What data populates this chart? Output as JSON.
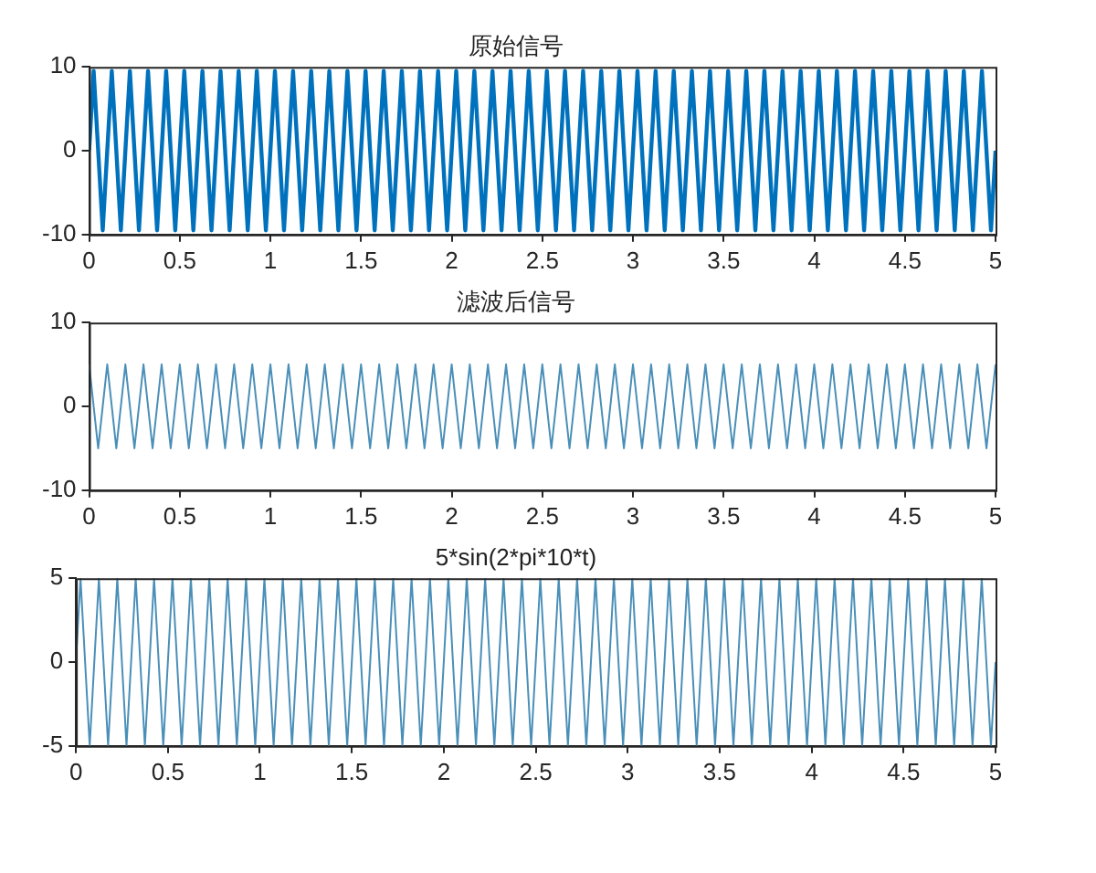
{
  "chart_data": [
    {
      "type": "line",
      "title": "原始信号",
      "xlim": [
        0,
        5
      ],
      "xticks": [
        0,
        0.5,
        1,
        1.5,
        2,
        2.5,
        3,
        3.5,
        4,
        4.5,
        5
      ],
      "ylim": [
        -10,
        10
      ],
      "yticks": [
        -10,
        0,
        10
      ],
      "grid": false,
      "legend": false,
      "marker": "none",
      "line_style": "solid",
      "series": [
        {
          "color": "#0072bd",
          "x": [
            0,
            0.025,
            0.075,
            0.125,
            0.175,
            0.225,
            0.275,
            0.325,
            0.375,
            0.425,
            0.475,
            0.525,
            0.575,
            0.625,
            0.675,
            0.725,
            0.775,
            0.825,
            0.875,
            0.925,
            0.975,
            1.025,
            1.075,
            1.125,
            1.175,
            1.225,
            1.275,
            1.325,
            1.375,
            1.425,
            1.475,
            1.525,
            1.575,
            1.625,
            1.675,
            1.725,
            1.775,
            1.825,
            1.875,
            1.925,
            1.975,
            2.025,
            2.075,
            2.125,
            2.175,
            2.225,
            2.275,
            2.325,
            2.375,
            2.425,
            2.475,
            2.525,
            2.575,
            2.625,
            2.675,
            2.725,
            2.775,
            2.825,
            2.875,
            2.925,
            2.975,
            3.025,
            3.075,
            3.125,
            3.175,
            3.225,
            3.275,
            3.325,
            3.375,
            3.425,
            3.475,
            3.525,
            3.575,
            3.625,
            3.675,
            3.725,
            3.775,
            3.825,
            3.875,
            3.925,
            3.975,
            4.025,
            4.075,
            4.125,
            4.175,
            4.225,
            4.275,
            4.325,
            4.375,
            4.425,
            4.475,
            4.525,
            4.575,
            4.625,
            4.675,
            4.725,
            4.775,
            4.825,
            4.875,
            4.925,
            4.975,
            5
          ],
          "values": [
            0,
            9.5,
            -9.5,
            9.5,
            -9.5,
            9.5,
            -9.5,
            9.5,
            -9.5,
            9.5,
            -9.5,
            9.5,
            -9.5,
            9.5,
            -9.5,
            9.5,
            -9.5,
            9.5,
            -9.5,
            9.5,
            -9.5,
            9.5,
            -9.5,
            9.5,
            -9.5,
            9.5,
            -9.5,
            9.5,
            -9.5,
            9.5,
            -9.5,
            9.5,
            -9.5,
            9.5,
            -9.5,
            9.5,
            -9.5,
            9.5,
            -9.5,
            9.5,
            -9.5,
            9.5,
            -9.5,
            9.5,
            -9.5,
            9.5,
            -9.5,
            9.5,
            -9.5,
            9.5,
            -9.5,
            9.5,
            -9.5,
            9.5,
            -9.5,
            9.5,
            -9.5,
            9.5,
            -9.5,
            9.5,
            -9.5,
            9.5,
            -9.5,
            9.5,
            -9.5,
            9.5,
            -9.5,
            9.5,
            -9.5,
            9.5,
            -9.5,
            9.5,
            -9.5,
            9.5,
            -9.5,
            9.5,
            -9.5,
            9.5,
            -9.5,
            9.5,
            -9.5,
            9.5,
            -9.5,
            9.5,
            -9.5,
            9.5,
            -9.5,
            9.5,
            -9.5,
            9.5,
            -9.5,
            9.5,
            -9.5,
            9.5,
            -9.5,
            9.5,
            -9.5,
            9.5,
            -9.5,
            9.5,
            -9.5,
            0
          ]
        }
      ]
    },
    {
      "type": "line",
      "title": "滤波后信号",
      "xlim": [
        0,
        5
      ],
      "xticks": [
        0,
        0.5,
        1,
        1.5,
        2,
        2.5,
        3,
        3.5,
        4,
        4.5,
        5
      ],
      "ylim": [
        -10,
        10
      ],
      "yticks": [
        -10,
        0,
        10
      ],
      "grid": false,
      "legend": false,
      "marker": "none",
      "line_style": "solid",
      "series": [
        {
          "color": "#4a8fb8",
          "x": [
            0,
            0.05,
            0.1,
            0.15,
            0.2,
            0.25,
            0.3,
            0.35,
            0.4,
            0.45,
            0.5,
            0.55,
            0.6,
            0.65,
            0.7,
            0.75,
            0.8,
            0.85,
            0.9,
            0.95,
            1,
            1.05,
            1.1,
            1.15,
            1.2,
            1.25,
            1.3,
            1.35,
            1.4,
            1.45,
            1.5,
            1.55,
            1.6,
            1.65,
            1.7,
            1.75,
            1.8,
            1.85,
            1.9,
            1.95,
            2,
            2.05,
            2.1,
            2.15,
            2.2,
            2.25,
            2.3,
            2.35,
            2.4,
            2.45,
            2.5,
            2.55,
            2.6,
            2.65,
            2.7,
            2.75,
            2.8,
            2.85,
            2.9,
            2.95,
            3,
            3.05,
            3.1,
            3.15,
            3.2,
            3.25,
            3.3,
            3.35,
            3.4,
            3.45,
            3.5,
            3.55,
            3.6,
            3.65,
            3.7,
            3.75,
            3.8,
            3.85,
            3.9,
            3.95,
            4,
            4.05,
            4.1,
            4.15,
            4.2,
            4.25,
            4.3,
            4.35,
            4.4,
            4.45,
            4.5,
            4.55,
            4.6,
            4.65,
            4.7,
            4.75,
            4.8,
            4.85,
            4.9,
            4.95,
            5
          ],
          "values": [
            5,
            -5,
            5,
            -5,
            5,
            -5,
            5,
            -5,
            5,
            -5,
            5,
            -5,
            5,
            -5,
            5,
            -5,
            5,
            -5,
            5,
            -5,
            5,
            -5,
            5,
            -5,
            5,
            -5,
            5,
            -5,
            5,
            -5,
            5,
            -5,
            5,
            -5,
            5,
            -5,
            5,
            -5,
            5,
            -5,
            5,
            -5,
            5,
            -5,
            5,
            -5,
            5,
            -5,
            5,
            -5,
            5,
            -5,
            5,
            -5,
            5,
            -5,
            5,
            -5,
            5,
            -5,
            5,
            -5,
            5,
            -5,
            5,
            -5,
            5,
            -5,
            5,
            -5,
            5,
            -5,
            5,
            -5,
            5,
            -5,
            5,
            -5,
            5,
            -5,
            5,
            -5,
            5,
            -5,
            5,
            -5,
            5,
            -5,
            5,
            -5,
            5,
            -5,
            5,
            -5,
            5,
            -5,
            5,
            -5,
            5,
            -5,
            5
          ]
        }
      ]
    },
    {
      "type": "line",
      "title": "5*sin(2*pi*10*t)",
      "xlim": [
        0,
        5
      ],
      "xticks": [
        0,
        0.5,
        1,
        1.5,
        2,
        2.5,
        3,
        3.5,
        4,
        4.5,
        5
      ],
      "ylim": [
        -5,
        5
      ],
      "yticks": [
        -5,
        0,
        5
      ],
      "grid": false,
      "legend": false,
      "marker": "none",
      "line_style": "solid",
      "series": [
        {
          "color": "#4a8fb8",
          "x": [
            0,
            0.025,
            0.075,
            0.125,
            0.175,
            0.225,
            0.275,
            0.325,
            0.375,
            0.425,
            0.475,
            0.525,
            0.575,
            0.625,
            0.675,
            0.725,
            0.775,
            0.825,
            0.875,
            0.925,
            0.975,
            1.025,
            1.075,
            1.125,
            1.175,
            1.225,
            1.275,
            1.325,
            1.375,
            1.425,
            1.475,
            1.525,
            1.575,
            1.625,
            1.675,
            1.725,
            1.775,
            1.825,
            1.875,
            1.925,
            1.975,
            2.025,
            2.075,
            2.125,
            2.175,
            2.225,
            2.275,
            2.325,
            2.375,
            2.425,
            2.475,
            2.525,
            2.575,
            2.625,
            2.675,
            2.725,
            2.775,
            2.825,
            2.875,
            2.925,
            2.975,
            3.025,
            3.075,
            3.125,
            3.175,
            3.225,
            3.275,
            3.325,
            3.375,
            3.425,
            3.475,
            3.525,
            3.575,
            3.625,
            3.675,
            3.725,
            3.775,
            3.825,
            3.875,
            3.925,
            3.975,
            4.025,
            4.075,
            4.125,
            4.175,
            4.225,
            4.275,
            4.325,
            4.375,
            4.425,
            4.475,
            4.525,
            4.575,
            4.625,
            4.675,
            4.725,
            4.775,
            4.825,
            4.875,
            4.925,
            4.975,
            5
          ],
          "values": [
            0,
            5,
            -5,
            5,
            -5,
            5,
            -5,
            5,
            -5,
            5,
            -5,
            5,
            -5,
            5,
            -5,
            5,
            -5,
            5,
            -5,
            5,
            -5,
            5,
            -5,
            5,
            -5,
            5,
            -5,
            5,
            -5,
            5,
            -5,
            5,
            -5,
            5,
            -5,
            5,
            -5,
            5,
            -5,
            5,
            -5,
            5,
            -5,
            5,
            -5,
            5,
            -5,
            5,
            -5,
            5,
            -5,
            5,
            -5,
            5,
            -5,
            5,
            -5,
            5,
            -5,
            5,
            -5,
            5,
            -5,
            5,
            -5,
            5,
            -5,
            5,
            -5,
            5,
            -5,
            5,
            -5,
            5,
            -5,
            5,
            -5,
            5,
            -5,
            5,
            -5,
            5,
            -5,
            5,
            -5,
            5,
            -5,
            5,
            -5,
            5,
            -5,
            5,
            -5,
            5,
            -5,
            5,
            -5,
            5,
            -5,
            5,
            -5,
            0
          ]
        }
      ]
    }
  ]
}
